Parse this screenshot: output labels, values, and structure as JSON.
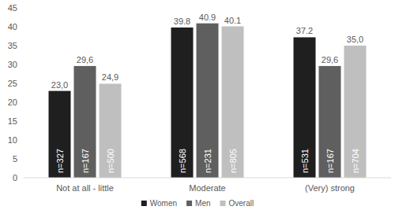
{
  "chart_data": {
    "type": "bar",
    "categories": [
      "Not at all - little",
      "Moderate",
      "(Very) strong"
    ],
    "series": [
      {
        "name": "Women",
        "color": "#1f1f1f",
        "values": [
          23.0,
          39.8,
          37.2
        ],
        "value_labels": [
          "23,0",
          "39.8",
          "37.2"
        ],
        "n_labels": [
          "n=327",
          "n=568",
          "n=531"
        ]
      },
      {
        "name": "Men",
        "color": "#5f5f5f",
        "values": [
          29.6,
          40.9,
          29.6
        ],
        "value_labels": [
          "29,6",
          "40.9",
          "29,6"
        ],
        "n_labels": [
          "n=167",
          "n=231",
          "n=167"
        ]
      },
      {
        "name": "Overall",
        "color": "#bfbfbf",
        "values": [
          24.9,
          40.1,
          35.0
        ],
        "value_labels": [
          "24,9",
          "40.1",
          "35,0"
        ],
        "n_labels": [
          "n=500",
          "n=805",
          "n=704"
        ]
      }
    ],
    "ylim": [
      0,
      45
    ],
    "yticks": [
      0,
      5,
      10,
      15,
      20,
      25,
      30,
      35,
      40,
      45
    ],
    "grid": false,
    "legend": "bottom",
    "data_labels": true
  }
}
